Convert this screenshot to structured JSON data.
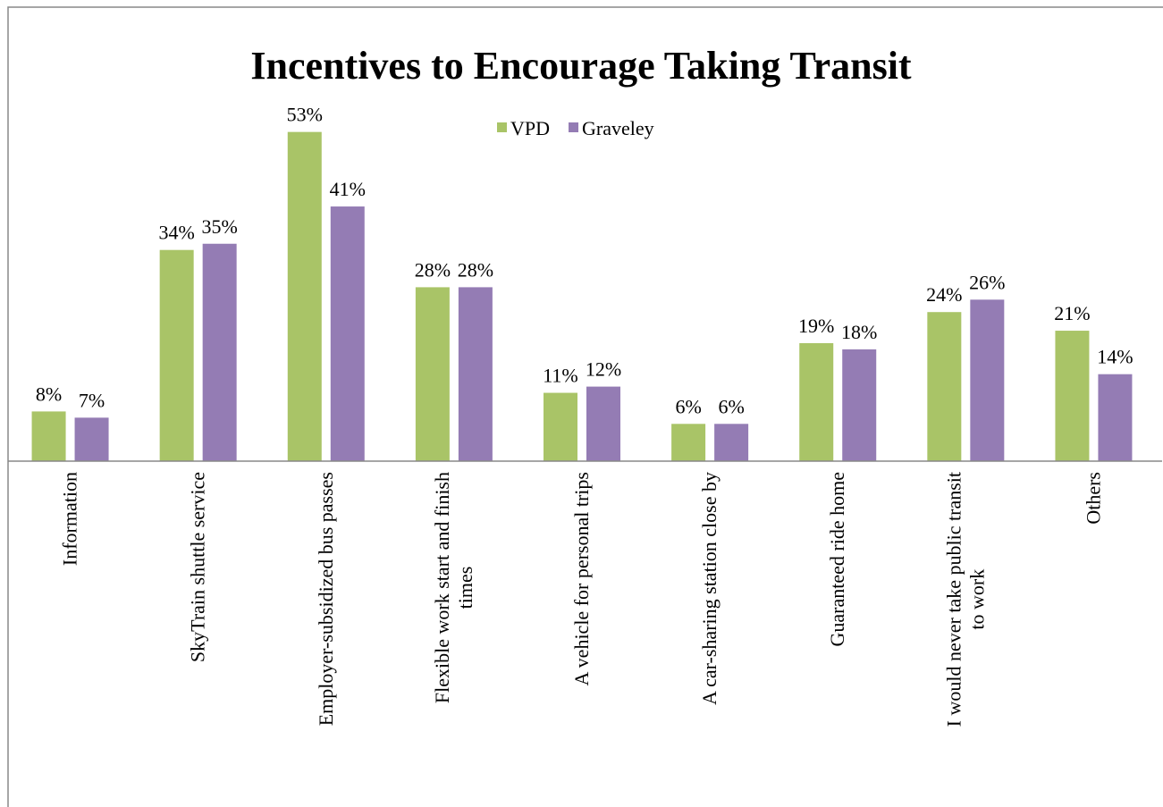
{
  "chart_data": {
    "type": "bar",
    "title": "Incentives to Encourage Taking Transit",
    "categories": [
      "Information",
      "SkyTrain shuttle service",
      "Employer-subsidized bus passes",
      "Flexible work start and finish times",
      "A vehicle for personal trips",
      "A car-sharing station close by",
      "Guaranteed ride home",
      "I would never take public transit to work",
      "Others"
    ],
    "series": [
      {
        "name": "VPD",
        "color": "#a9c467",
        "values": [
          8,
          34,
          53,
          28,
          11,
          6,
          19,
          24,
          21
        ],
        "value_labels": [
          "8%",
          "34%",
          "53%",
          "28%",
          "11%",
          "6%",
          "19%",
          "24%",
          "21%"
        ]
      },
      {
        "name": "Graveley",
        "color": "#947cb4",
        "values": [
          7,
          35,
          41,
          28,
          12,
          6,
          18,
          26,
          14
        ],
        "value_labels": [
          "7%",
          "35%",
          "41%",
          "28%",
          "12%",
          "6%",
          "18%",
          "26%",
          "14%"
        ]
      }
    ],
    "legend": "top"
  }
}
